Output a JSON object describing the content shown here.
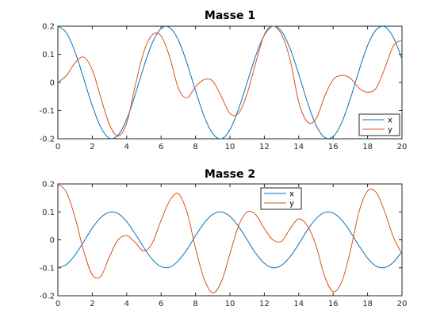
{
  "chart_data": [
    {
      "type": "line",
      "title": "Masse 1",
      "xlim": [
        0,
        20
      ],
      "ylim": [
        -0.2,
        0.2
      ],
      "xticks": [
        0,
        2,
        4,
        6,
        8,
        10,
        12,
        14,
        16,
        18,
        20
      ],
      "yticks": [
        -0.2,
        -0.1,
        0,
        0.1,
        0.2
      ],
      "xtick_labels": [
        "0",
        "2",
        "4",
        "6",
        "8",
        "10",
        "12",
        "14",
        "16",
        "18",
        "20"
      ],
      "ytick_labels": [
        "-0.2",
        "-0.1",
        "0",
        "0.1",
        "0.2"
      ],
      "legend_position": "bottom-right",
      "series": [
        {
          "name": "x",
          "color": "#0072BD",
          "x": [
            0,
            0.5,
            1,
            1.5,
            2,
            2.5,
            3,
            3.5,
            4,
            4.5,
            5,
            5.5,
            6,
            6.5,
            7,
            7.5,
            8,
            8.5,
            9,
            9.5,
            10,
            10.5,
            11,
            11.5,
            12,
            12.5,
            13,
            13.5,
            14,
            14.5,
            15,
            15.5,
            16,
            16.5,
            17,
            17.5,
            18,
            18.5,
            19,
            19.5,
            20
          ],
          "y": [
            0.2,
            0.176,
            0.108,
            0.014,
            -0.083,
            -0.16,
            -0.198,
            -0.187,
            -0.131,
            -0.042,
            0.057,
            0.142,
            0.192,
            0.195,
            0.151,
            0.069,
            -0.029,
            -0.12,
            -0.182,
            -0.2,
            -0.168,
            -0.095,
            0,
            0.095,
            0.168,
            0.2,
            0.182,
            0.12,
            0.029,
            -0.069,
            -0.151,
            -0.195,
            -0.192,
            -0.142,
            -0.057,
            0.042,
            0.131,
            0.187,
            0.198,
            0.16,
            0.083
          ]
        },
        {
          "name": "y",
          "color": "#D95319",
          "x": [
            0,
            0.5,
            1,
            1.5,
            2,
            2.5,
            3,
            3.5,
            4,
            4.5,
            5,
            5.5,
            6,
            6.5,
            7,
            7.5,
            8,
            8.5,
            9,
            9.5,
            10,
            10.5,
            11,
            11.5,
            12,
            12.5,
            13,
            13.5,
            14,
            14.5,
            15,
            15.5,
            16,
            16.5,
            17,
            17.5,
            18,
            18.5,
            19,
            19.5,
            20
          ],
          "y": [
            0,
            0.025,
            0.07,
            0.09,
            0.045,
            -0.055,
            -0.15,
            -0.19,
            -0.145,
            -0.01,
            0.11,
            0.17,
            0.165,
            0.09,
            -0.02,
            -0.055,
            -0.015,
            0.01,
            0.005,
            -0.05,
            -0.11,
            -0.11,
            -0.04,
            0.07,
            0.17,
            0.2,
            0.17,
            0.08,
            -0.07,
            -0.14,
            -0.13,
            -0.05,
            0.01,
            0.025,
            0.015,
            -0.02,
            -0.035,
            -0.02,
            0.05,
            0.13,
            0.15
          ]
        }
      ]
    },
    {
      "type": "line",
      "title": "Masse 2",
      "xlim": [
        0,
        20
      ],
      "ylim": [
        -0.2,
        0.2
      ],
      "xticks": [
        0,
        2,
        4,
        6,
        8,
        10,
        12,
        14,
        16,
        18,
        20
      ],
      "yticks": [
        -0.2,
        -0.1,
        0,
        0.1,
        0.2
      ],
      "xtick_labels": [
        "0",
        "2",
        "4",
        "6",
        "8",
        "10",
        "12",
        "14",
        "16",
        "18",
        "20"
      ],
      "ytick_labels": [
        "-0.2",
        "-0.1",
        "0",
        "0.1",
        "0.2"
      ],
      "legend_position": "top-center",
      "series": [
        {
          "name": "x",
          "color": "#0072BD",
          "x": [
            0,
            0.5,
            1,
            1.5,
            2,
            2.5,
            3,
            3.5,
            4,
            4.5,
            5,
            5.5,
            6,
            6.5,
            7,
            7.5,
            8,
            8.5,
            9,
            9.5,
            10,
            10.5,
            11,
            11.5,
            12,
            12.5,
            13,
            13.5,
            14,
            14.5,
            15,
            15.5,
            16,
            16.5,
            17,
            17.5,
            18,
            18.5,
            19,
            19.5,
            20
          ],
          "y": [
            -0.1,
            -0.088,
            -0.054,
            -0.007,
            0.042,
            0.08,
            0.099,
            0.094,
            0.065,
            0.021,
            -0.028,
            -0.071,
            -0.096,
            -0.098,
            -0.075,
            -0.035,
            0.015,
            0.06,
            0.091,
            0.1,
            0.084,
            0.048,
            0,
            -0.048,
            -0.084,
            -0.1,
            -0.091,
            -0.06,
            -0.015,
            0.035,
            0.075,
            0.098,
            0.096,
            0.071,
            0.028,
            -0.021,
            -0.065,
            -0.094,
            -0.099,
            -0.08,
            -0.042
          ]
        },
        {
          "name": "y",
          "color": "#D95319",
          "x": [
            0,
            0.5,
            1,
            1.5,
            2,
            2.5,
            3,
            3.5,
            4,
            4.5,
            5,
            5.5,
            6,
            6.5,
            7,
            7.5,
            8,
            8.5,
            9,
            9.5,
            10,
            10.5,
            11,
            11.5,
            12,
            12.5,
            13,
            13.5,
            14,
            14.5,
            15,
            15.5,
            16,
            16.5,
            17,
            17.5,
            18,
            18.5,
            19,
            19.5,
            20
          ],
          "y": [
            0.2,
            0.17,
            0.08,
            -0.04,
            -0.125,
            -0.13,
            -0.06,
            0,
            0.015,
            -0.01,
            -0.04,
            -0.01,
            0.07,
            0.14,
            0.165,
            0.1,
            -0.03,
            -0.14,
            -0.19,
            -0.15,
            -0.05,
            0.05,
            0.1,
            0.09,
            0.04,
            0,
            -0.005,
            0.04,
            0.075,
            0.05,
            -0.02,
            -0.13,
            -0.185,
            -0.15,
            -0.04,
            0.1,
            0.175,
            0.17,
            0.1,
            0.01,
            -0.05
          ]
        }
      ]
    }
  ]
}
